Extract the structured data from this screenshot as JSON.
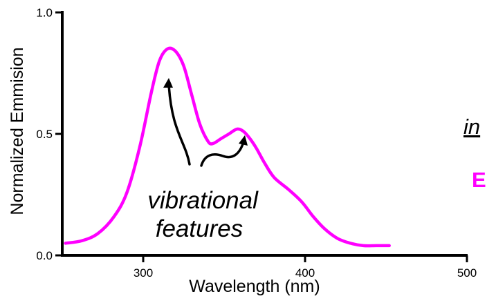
{
  "chart_data": {
    "type": "line",
    "title": "",
    "xlabel": "Wavelength (nm)",
    "ylabel": "Normalized Emmision",
    "xlim": [
      250,
      500
    ],
    "ylim": [
      0.0,
      1.0
    ],
    "x_ticks": [
      300,
      400,
      500
    ],
    "x_tick_labels": [
      "300",
      "400",
      "500"
    ],
    "y_ticks": [
      0.0,
      0.5,
      1.0
    ],
    "y_tick_labels": [
      "0.0",
      "0.5",
      "1.0"
    ],
    "grid": false,
    "series": [
      {
        "color": "#ff00ff",
        "x": [
          252,
          262,
          272,
          282,
          290,
          298,
          305,
          310,
          315,
          320,
          325,
          330,
          335,
          340,
          343,
          348,
          353,
          358,
          362,
          366,
          370,
          375,
          381,
          390,
          398,
          405,
          412,
          420,
          428,
          436,
          444,
          452
        ],
        "y": [
          0.05,
          0.06,
          0.09,
          0.16,
          0.26,
          0.45,
          0.67,
          0.8,
          0.85,
          0.84,
          0.78,
          0.66,
          0.54,
          0.47,
          0.46,
          0.48,
          0.5,
          0.52,
          0.51,
          0.48,
          0.44,
          0.38,
          0.32,
          0.27,
          0.22,
          0.16,
          0.11,
          0.07,
          0.05,
          0.04,
          0.04,
          0.04
        ]
      }
    ],
    "annotations": [
      {
        "lines": [
          "vibrational",
          "features"
        ]
      }
    ]
  },
  "partial_text": {
    "line1": "in",
    "line2": "E"
  },
  "colors": {
    "curve": "#ff00ff",
    "accent_text": "#ff00ff",
    "axis": "#000000"
  }
}
